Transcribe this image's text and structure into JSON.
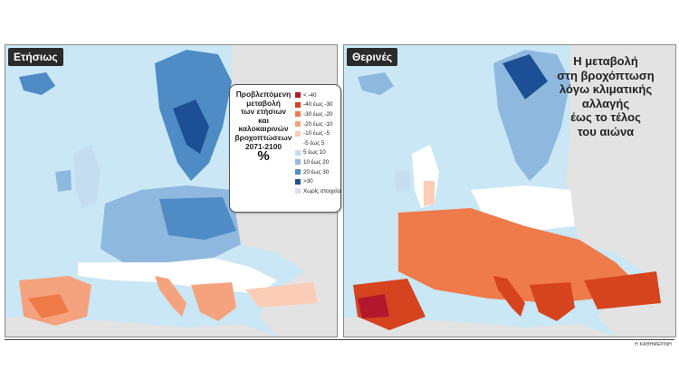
{
  "annual_panel": {
    "label": "Ετήσιως",
    "land_color": "#e6e6e6",
    "sea_color": "#c9e7f5"
  },
  "summer_panel": {
    "label": "Θερινές",
    "land_color": "#e6e6e6",
    "sea_color": "#c9e7f5"
  },
  "legend": {
    "title_lines": [
      "Προβλεπόμενη",
      "μεταβολή",
      "των ετήσιων",
      "και καλοκαιρινών",
      "βροχοπτώσεων",
      "2071-2100"
    ],
    "unit": "%",
    "items": [
      {
        "label": "< -40",
        "color": "#b2182b"
      },
      {
        "label": "-40 έως -30",
        "color": "#d6431f"
      },
      {
        "label": "-30 έως -20",
        "color": "#ef7a4a"
      },
      {
        "label": "-20 έως -10",
        "color": "#f5a37e"
      },
      {
        "label": "-10 έως -5",
        "color": "#fbcdb6"
      },
      {
        "label": "-5 έως 5",
        "color": "#ffffff"
      },
      {
        "label": "5 έως 10",
        "color": "#c6dcef"
      },
      {
        "label": "10 έως 20",
        "color": "#8fb8de"
      },
      {
        "label": "20 έως 30",
        "color": "#4f8bc4"
      },
      {
        "label": ">30",
        "color": "#1c4f94"
      },
      {
        "label": "Χωρίς στοιχεία",
        "color": "#d7def0"
      }
    ]
  },
  "headline_lines": [
    "Η μεταβολή",
    "στη βροχόπτωση",
    "λόγω κλιματικής",
    "αλλαγής",
    "έως το τέλος",
    "του αιώνα"
  ],
  "credit": "Η ΚΑΘΗΜΕΡΙΝΗ"
}
